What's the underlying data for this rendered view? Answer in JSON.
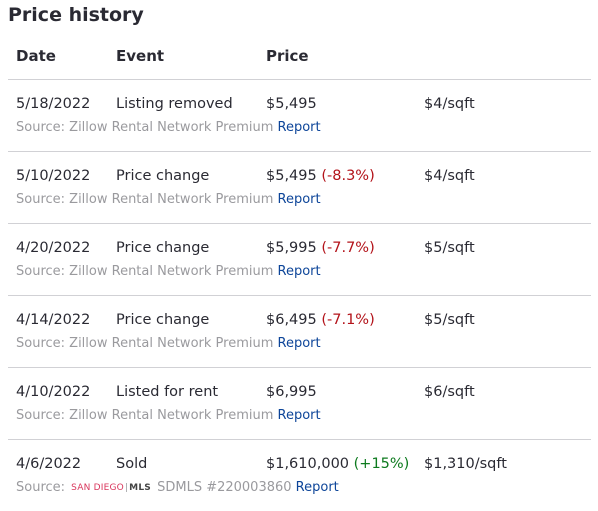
{
  "title": "Price history",
  "columns": {
    "date": "Date",
    "event": "Event",
    "price": "Price"
  },
  "rows": [
    {
      "date": "5/18/2022",
      "event": "Listing removed",
      "price": "$5,495",
      "change": "",
      "change_type": "",
      "sqft": "$4/sqft",
      "source_prefix": "Source: Zillow Rental Network Premium",
      "report": "Report"
    },
    {
      "date": "5/10/2022",
      "event": "Price change",
      "price": "$5,495",
      "change": "(-8.3%)",
      "change_type": "neg",
      "sqft": "$4/sqft",
      "source_prefix": "Source: Zillow Rental Network Premium",
      "report": "Report"
    },
    {
      "date": "4/20/2022",
      "event": "Price change",
      "price": "$5,995",
      "change": "(-7.7%)",
      "change_type": "neg",
      "sqft": "$5/sqft",
      "source_prefix": "Source: Zillow Rental Network Premium",
      "report": "Report"
    },
    {
      "date": "4/14/2022",
      "event": "Price change",
      "price": "$6,495",
      "change": "(-7.1%)",
      "change_type": "neg",
      "sqft": "$5/sqft",
      "source_prefix": "Source: Zillow Rental Network Premium",
      "report": "Report"
    },
    {
      "date": "4/10/2022",
      "event": "Listed for rent",
      "price": "$6,995",
      "change": "",
      "change_type": "",
      "sqft": "$6/sqft",
      "source_prefix": "Source: Zillow Rental Network Premium",
      "report": "Report"
    },
    {
      "date": "4/6/2022",
      "event": "Sold",
      "price": "$1,610,000",
      "change": "(+15%)",
      "change_type": "pos",
      "sqft": "$1,310/sqft",
      "source_prefix": "Source:",
      "logo_sd": "SAN DIEGO",
      "logo_mls": "MLS",
      "source_suffix": "SDMLS #220003860",
      "report": "Report"
    }
  ],
  "colors": {
    "negative": "#b3131a",
    "positive": "#0d7a1e",
    "link": "#0d4599",
    "source": "#9a9a9e",
    "logo_sd": "#d9375d"
  }
}
